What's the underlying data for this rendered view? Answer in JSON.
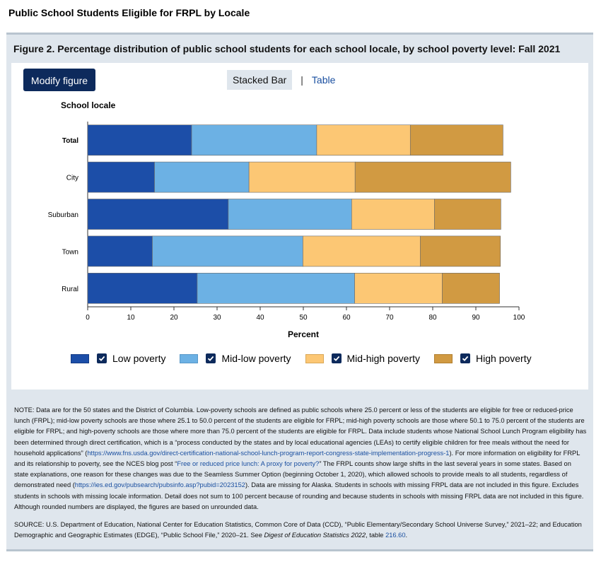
{
  "page": {
    "title": "Public School Students Eligible for FRPL by Locale"
  },
  "figure": {
    "title": "Figure 2. Percentage distribution of public school students for each school locale, by school poverty level: Fall 2021",
    "modify_label": "Modify figure",
    "tabs": [
      {
        "label": "Stacked Bar",
        "active": true
      },
      {
        "label": "Table",
        "active": false
      }
    ],
    "tab_separator": "|"
  },
  "chart_data": {
    "type": "bar",
    "orientation": "horizontal",
    "stacked": true,
    "title": "",
    "ylabel": "School locale",
    "xlabel": "Percent",
    "xlim": [
      0,
      100
    ],
    "xticks": [
      0,
      10,
      20,
      30,
      40,
      50,
      60,
      70,
      80,
      90,
      100
    ],
    "categories": [
      "Total",
      "City",
      "Suburban",
      "Town",
      "Rural"
    ],
    "bold_categories": [
      "Total"
    ],
    "grid": false,
    "legend_position": "bottom",
    "series": [
      {
        "name": "Low poverty",
        "color": "#1c4ea8",
        "values": [
          24.1,
          15.5,
          32.6,
          15.0,
          25.4
        ]
      },
      {
        "name": "Mid-low poverty",
        "color": "#6cb1e4",
        "values": [
          29.0,
          21.9,
          28.6,
          34.9,
          36.5
        ]
      },
      {
        "name": "Mid-high poverty",
        "color": "#fcc774",
        "values": [
          21.7,
          24.6,
          19.2,
          27.2,
          20.3
        ]
      },
      {
        "name": "High poverty",
        "color": "#d19a42",
        "values": [
          21.5,
          36.1,
          15.4,
          18.6,
          13.3
        ]
      }
    ]
  },
  "notes": {
    "note_text_1": "NOTE: Data are for the 50 states and the District of Columbia. Low-poverty schools are defined as public schools where 25.0 percent or less of the students are eligible for free or reduced-price lunch (FRPL); mid-low poverty schools are those where 25.1 to 50.0 percent of the students are eligible for FRPL; mid-high poverty schools are those where 50.1 to 75.0 percent of the students are eligible for FRPL; and high-poverty schools are those where more than 75.0 percent of the students are eligible for FRPL. Data include students whose National School Lunch Program eligibility has been determined through direct certification, which is a “process conducted by the states and by local educational agencies (LEAs) to certify eligible children for free meals without the need for household applications” (",
    "link_1": "https://www.fns.usda.gov/direct-certification-national-school-lunch-program-report-congress-state-implementation-progress-1",
    "note_text_2": "). For more information on eligibility for FRPL and its relationship to poverty, see the NCES blog post “",
    "link_2": "Free or reduced price lunch: A proxy for poverty?",
    "note_text_3": "” The FRPL counts show large shifts in the last several years in some states. Based on state explanations, one reason for these changes was due to the Seamless Summer Option (beginning October 1, 2020), which allowed schools to provide meals to all students, regardless of demonstrated need (",
    "link_3": "https://ies.ed.gov/pubsearch/pubsinfo.asp?pubid=2023152",
    "note_text_4": "). Data are missing for Alaska. Students in schools with missing FRPL data are not included in this figure. Excludes students in schools with missing locale information. Detail does not sum to 100 percent because of rounding and because students in schools with missing FRPL data are not included in this figure. Although rounded numbers are displayed, the figures are based on unrounded data.",
    "source_text_1": "SOURCE: U.S. Department of Education, National Center for Education Statistics, Common Core of Data (CCD), “Public Elementary/Secondary School Universe Survey,” 2021–22; and Education Demographic and Geographic Estimates (EDGE), “Public School File,” 2020–21. See ",
    "source_italic": "Digest of Education Statistics 2022",
    "source_text_2": ", table ",
    "source_link": "216.60",
    "source_text_3": "."
  }
}
